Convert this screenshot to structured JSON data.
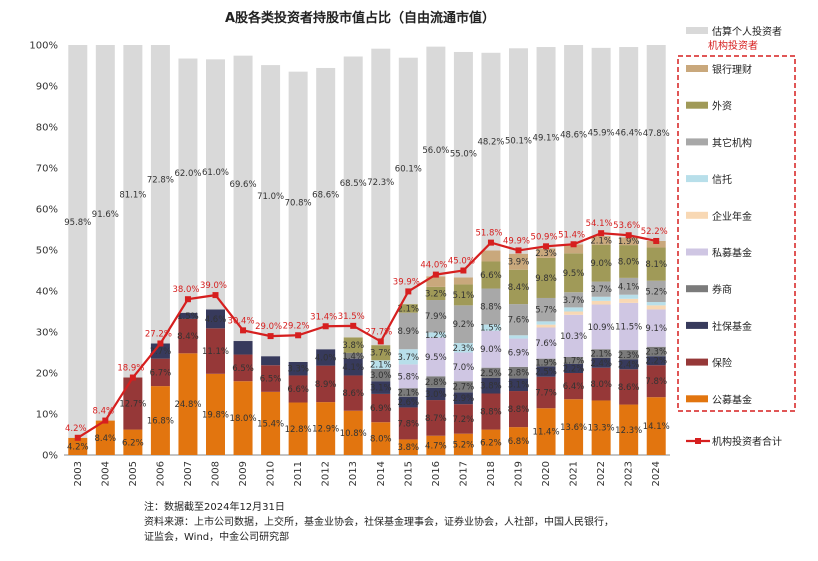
{
  "chart_data": {
    "type": "bar",
    "stacked": true,
    "title": "A股各类投资者持股市值占比（自由流通市值）",
    "ylim": [
      0,
      100
    ],
    "yticks": [
      "0%",
      "10%",
      "20%",
      "30%",
      "40%",
      "50%",
      "60%",
      "70%",
      "80%",
      "90%",
      "100%"
    ],
    "categories": [
      "2003",
      "2004",
      "2005",
      "2006",
      "2007",
      "2008",
      "2009",
      "2010",
      "2011",
      "2012",
      "2013",
      "2014",
      "2015",
      "2016",
      "2017",
      "2018",
      "2019",
      "2020",
      "2021",
      "2022",
      "2023",
      "2024"
    ],
    "series": [
      {
        "name": "公募基金",
        "color": "#e2750f",
        "values": [
          4.2,
          8.4,
          6.2,
          16.8,
          24.8,
          19.8,
          18.0,
          15.4,
          12.8,
          12.9,
          10.8,
          8.0,
          3.8,
          4.7,
          5.2,
          6.2,
          6.8,
          11.4,
          13.6,
          13.3,
          12.3,
          14.1
        ],
        "labels": [
          "4.2%",
          "8.4%",
          "6.2%",
          "16.8%",
          "24.8%",
          "19.8%",
          "18.0%",
          "15.4%",
          "12.8%",
          "12.9%",
          "10.8%",
          "8.0%",
          "3.8%",
          "4.7%",
          "5.2%",
          "6.2%",
          "6.8%",
          "11.4%",
          "13.6%",
          "13.3%",
          "12.3%",
          "14.1%"
        ]
      },
      {
        "name": "保险",
        "color": "#963838",
        "values": [
          0,
          0,
          12.7,
          6.7,
          8.4,
          11.1,
          6.5,
          6.5,
          6.6,
          8.9,
          8.6,
          6.9,
          7.8,
          8.7,
          7.2,
          8.8,
          8.8,
          7.7,
          6.4,
          8.0,
          8.6,
          7.8
        ],
        "labels": [
          "",
          "",
          "12.7%",
          "6.7%",
          "8.4%",
          "11.1%",
          "6.5%",
          "6.5%",
          "6.6%",
          "8.9%",
          "8.6%",
          "6.9%",
          "7.8%",
          "8.7%",
          "7.2%",
          "8.8%",
          "8.8%",
          "7.7%",
          "6.4%",
          "8.0%",
          "8.6%",
          "7.8%"
        ]
      },
      {
        "name": "社保基金",
        "color": "#373a5c",
        "values": [
          0,
          0,
          0,
          3.7,
          1.5,
          4.6,
          3.3,
          2.2,
          3.3,
          4.0,
          4.1,
          3.1,
          2.6,
          3.0,
          2.9,
          3.8,
          3.1,
          2.5,
          2.2,
          2.4,
          2.4,
          2.2
        ],
        "labels": [
          "",
          "",
          "",
          "3.7%",
          "1.5%",
          "4.6%",
          "",
          "",
          "3.3%",
          "4.0%",
          "4.1%",
          "3.1%",
          "2.6%",
          "3.0%",
          "2.9%",
          "3.8%",
          "3.1%",
          "2.5%",
          "2.2%",
          "2.4%",
          "2.4%",
          "2.2%"
        ]
      },
      {
        "name": "券商",
        "color": "#7b7b7b",
        "values": [
          0,
          0,
          0,
          0,
          0,
          0,
          0,
          0,
          0,
          0,
          1.4,
          3.0,
          2.1,
          2.8,
          2.7,
          2.5,
          2.8,
          1.9,
          1.7,
          2.1,
          2.3,
          2.3
        ],
        "labels": [
          "",
          "",
          "",
          "",
          "",
          "",
          "",
          "",
          "",
          "",
          "1.4%",
          "3.0%",
          "2.1%",
          "2.8%",
          "2.7%",
          "2.5%",
          "2.8%",
          "1.9%",
          "1.7%",
          "2.1%",
          "2.3%",
          "2.3%"
        ]
      },
      {
        "name": "私募基金",
        "color": "#cfc6e3",
        "values": [
          0,
          0,
          0,
          0,
          0,
          0,
          0,
          0,
          0,
          0,
          0,
          0,
          5.8,
          9.5,
          7.0,
          9.0,
          6.9,
          7.6,
          10.3,
          10.9,
          11.5,
          9.1
        ],
        "labels": [
          "",
          "",
          "",
          "",
          "",
          "",
          "",
          "",
          "",
          "",
          "",
          "",
          "5.8%",
          "9.5%",
          "7.0%",
          "9.0%",
          "6.9%",
          "7.6%",
          "10.3%",
          "10.9%",
          "11.5%",
          "9.1%"
        ]
      },
      {
        "name": "企业年金",
        "color": "#f8d8b4",
        "values": [
          0,
          0,
          0,
          0,
          0,
          0,
          0,
          0,
          0,
          0,
          0,
          0,
          0,
          0,
          0,
          0,
          0,
          0.7,
          0.8,
          0.9,
          1.0,
          1.0
        ],
        "labels": [
          "",
          "",
          "",
          "",
          "",
          "",
          "",
          "",
          "",
          "",
          "",
          "",
          "",
          "",
          "",
          "",
          "",
          "",
          "",
          "",
          "",
          ""
        ]
      },
      {
        "name": "信托",
        "color": "#b8dfea",
        "values": [
          0,
          0,
          0,
          0,
          0,
          0,
          0,
          0,
          0,
          0,
          0,
          2.1,
          3.7,
          1.2,
          2.3,
          1.5,
          0.8,
          0.8,
          1.0,
          1.0,
          1.0,
          0.8
        ],
        "labels": [
          "",
          "",
          "",
          "",
          "",
          "",
          "",
          "",
          "",
          "",
          "",
          "2.1%",
          "3.7%",
          "1.2%",
          "2.3%",
          "1.5%",
          "",
          "",
          "",
          "",
          "",
          ""
        ]
      },
      {
        "name": "其它机构",
        "color": "#a8a8a8",
        "values": [
          0,
          0,
          0,
          0,
          0,
          0,
          0,
          0,
          0,
          0,
          0,
          0,
          8.9,
          7.9,
          9.2,
          8.8,
          7.6,
          5.7,
          3.7,
          3.7,
          4.1,
          5.2
        ],
        "labels": [
          "",
          "",
          "",
          "",
          "",
          "",
          "",
          "",
          "",
          "",
          "",
          "",
          "8.9%",
          "7.9%",
          "9.2%",
          "8.8%",
          "7.6%",
          "5.7%",
          "3.7%",
          "3.7%",
          "4.1%",
          "5.2%"
        ]
      },
      {
        "name": "外资",
        "color": "#a09a58",
        "values": [
          0,
          0,
          0,
          0,
          0,
          0,
          0,
          0,
          0,
          0,
          3.8,
          3.7,
          2.1,
          3.2,
          5.1,
          6.6,
          8.4,
          9.8,
          9.5,
          9.0,
          8.0,
          8.1
        ],
        "labels": [
          "",
          "",
          "",
          "",
          "",
          "",
          "",
          "",
          "",
          "",
          "3.8%",
          "3.7%",
          "2.1%",
          "3.2%",
          "5.1%",
          "6.6%",
          "8.4%",
          "9.8%",
          "9.5%",
          "9.0%",
          "8.0%",
          "8.1%"
        ]
      },
      {
        "name": "银行理财",
        "color": "#c9a87c",
        "values": [
          0,
          0,
          0,
          0,
          0,
          0,
          0,
          0,
          0,
          0,
          0,
          0,
          0,
          2.6,
          1.7,
          2.7,
          3.9,
          2.3,
          2.2,
          2.1,
          1.9,
          1.6
        ],
        "labels": [
          "",
          "",
          "",
          "",
          "",
          "",
          "",
          "",
          "",
          "",
          "",
          "",
          "",
          "",
          "",
          "",
          "3.9%",
          "2.3%",
          "",
          "2.1%",
          "1.9%",
          ""
        ]
      },
      {
        "name": "估算个人投资者",
        "color": "#d9d9d9",
        "values": [
          95.8,
          91.6,
          81.1,
          72.8,
          62.0,
          61.0,
          69.6,
          71.0,
          70.8,
          68.6,
          68.5,
          72.3,
          60.1,
          56.0,
          55.0,
          48.2,
          50.1,
          49.1,
          48.6,
          45.9,
          46.4,
          47.8
        ],
        "labels": [
          "95.8%",
          "91.6%",
          "81.1%",
          "72.8%",
          "62.0%",
          "61.0%",
          "69.6%",
          "71.0%",
          "70.8%",
          "68.6%",
          "68.5%",
          "72.3%",
          "60.1%",
          "56.0%",
          "55.0%",
          "48.2%",
          "50.1%",
          "49.1%",
          "48.6%",
          "45.9%",
          "46.4%",
          "47.8%"
        ]
      }
    ],
    "line": {
      "name": "机构投资者合计",
      "color": "#d61f1f",
      "values": [
        4.2,
        8.4,
        18.9,
        27.2,
        38.0,
        39.0,
        30.4,
        29.0,
        29.2,
        31.4,
        31.5,
        27.7,
        39.9,
        44.0,
        45.0,
        51.8,
        49.9,
        50.9,
        51.4,
        54.1,
        53.6,
        52.2
      ],
      "labels": [
        "4.2%",
        "8.4%",
        "18.9%",
        "27.2%",
        "38.0%",
        "39.0%",
        "30.4%",
        "29.0%",
        "29.2%",
        "31.4%",
        "31.5%",
        "27.7%",
        "39.9%",
        "44.0%",
        "45.0%",
        "51.8%",
        "49.9%",
        "50.9%",
        "51.4%",
        "54.1%",
        "53.6%",
        "52.2%"
      ]
    },
    "legend": {
      "position": "right",
      "group_header": "机构投资者",
      "items_top": [
        "估算个人投资者"
      ],
      "items_group": [
        "银行理财",
        "外资",
        "其它机构",
        "信托",
        "企业年金",
        "私募基金",
        "券商",
        "社保基金",
        "保险",
        "公募基金"
      ],
      "items_bottom": [
        "机构投资者合计"
      ]
    }
  },
  "notes": {
    "line1": "注：数据截至2024年12月31日",
    "line2": "资料来源：上市公司数据，上交所，基金业协会，社保基金理事会，证券业协会，人社部，中国人民银行，",
    "line3": "证监会，Wind，中金公司研究部"
  }
}
